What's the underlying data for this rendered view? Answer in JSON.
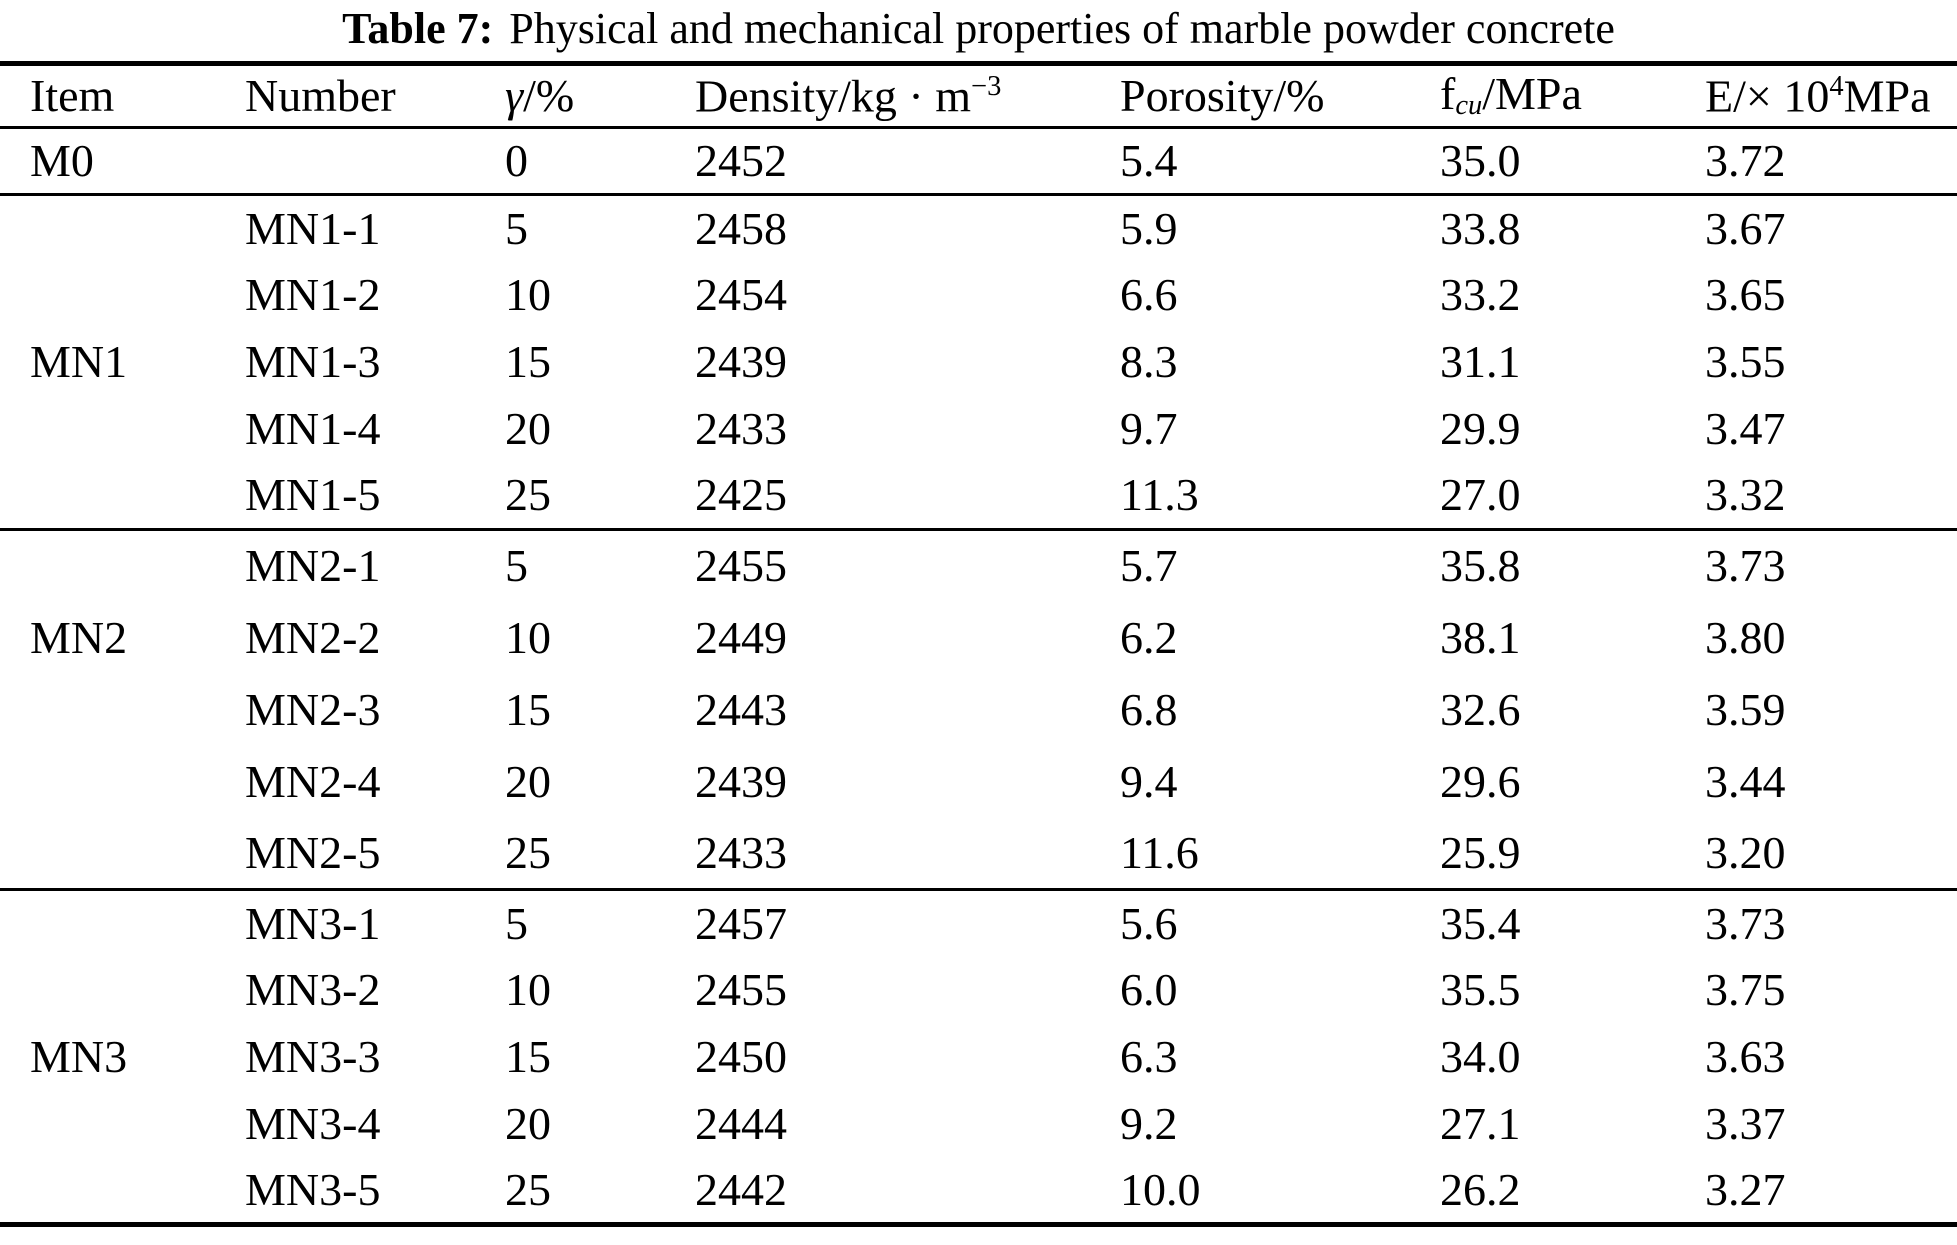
{
  "caption": {
    "label": "Table 7:",
    "text": "Physical and mechanical properties of marble powder concrete"
  },
  "columns": [
    {
      "name": "item",
      "parts": [
        {
          "t": "Item"
        }
      ]
    },
    {
      "name": "number",
      "parts": [
        {
          "t": "Number"
        }
      ]
    },
    {
      "name": "gamma",
      "parts": [
        {
          "t": "γ",
          "s": "i"
        },
        {
          "t": "/%"
        }
      ]
    },
    {
      "name": "density",
      "parts": [
        {
          "t": "Density/kg · m"
        },
        {
          "t": "−3",
          "s": "sup"
        }
      ]
    },
    {
      "name": "porosity",
      "parts": [
        {
          "t": "Porosity/%"
        }
      ]
    },
    {
      "name": "fcu",
      "parts": [
        {
          "t": "f"
        },
        {
          "t": "cu",
          "s": "subi"
        },
        {
          "t": "/MPa"
        }
      ]
    },
    {
      "name": "modulus",
      "parts": [
        {
          "t": "E/× 10"
        },
        {
          "t": "4",
          "s": "sup"
        },
        {
          "t": "MPa"
        }
      ]
    }
  ],
  "groups": [
    {
      "item": "M0",
      "label_row": 0,
      "rows": [
        [
          "",
          "0",
          "2452",
          "5.4",
          "35.0",
          "3.72"
        ]
      ]
    },
    {
      "item": "MN1",
      "label_row": 2,
      "rows": [
        [
          "MN1-1",
          "5",
          "2458",
          "5.9",
          "33.8",
          "3.67"
        ],
        [
          "MN1-2",
          "10",
          "2454",
          "6.6",
          "33.2",
          "3.65"
        ],
        [
          "MN1-3",
          "15",
          "2439",
          "8.3",
          "31.1",
          "3.55"
        ],
        [
          "MN1-4",
          "20",
          "2433",
          "9.7",
          "29.9",
          "3.47"
        ],
        [
          "MN1-5",
          "25",
          "2425",
          "11.3",
          "27.0",
          "3.32"
        ]
      ]
    },
    {
      "item": "MN2",
      "label_row": 1,
      "rows": [
        [
          "MN2-1",
          "5",
          "2455",
          "5.7",
          "35.8",
          "3.73"
        ],
        [
          "MN2-2",
          "10",
          "2449",
          "6.2",
          "38.1",
          "3.80"
        ],
        [
          "MN2-3",
          "15",
          "2443",
          "6.8",
          "32.6",
          "3.59"
        ],
        [
          "MN2-4",
          "20",
          "2439",
          "9.4",
          "29.6",
          "3.44"
        ],
        [
          "MN2-5",
          "25",
          "2433",
          "11.6",
          "25.9",
          "3.20"
        ]
      ]
    },
    {
      "item": "MN3",
      "label_row": 2,
      "rows": [
        [
          "MN3-1",
          "5",
          "2457",
          "5.6",
          "35.4",
          "3.73"
        ],
        [
          "MN3-2",
          "10",
          "2455",
          "6.0",
          "35.5",
          "3.75"
        ],
        [
          "MN3-3",
          "15",
          "2450",
          "6.3",
          "34.0",
          "3.63"
        ],
        [
          "MN3-4",
          "20",
          "2444",
          "9.2",
          "27.1",
          "3.37"
        ],
        [
          "MN3-5",
          "25",
          "2442",
          "10.0",
          "26.2",
          "3.27"
        ]
      ]
    }
  ]
}
